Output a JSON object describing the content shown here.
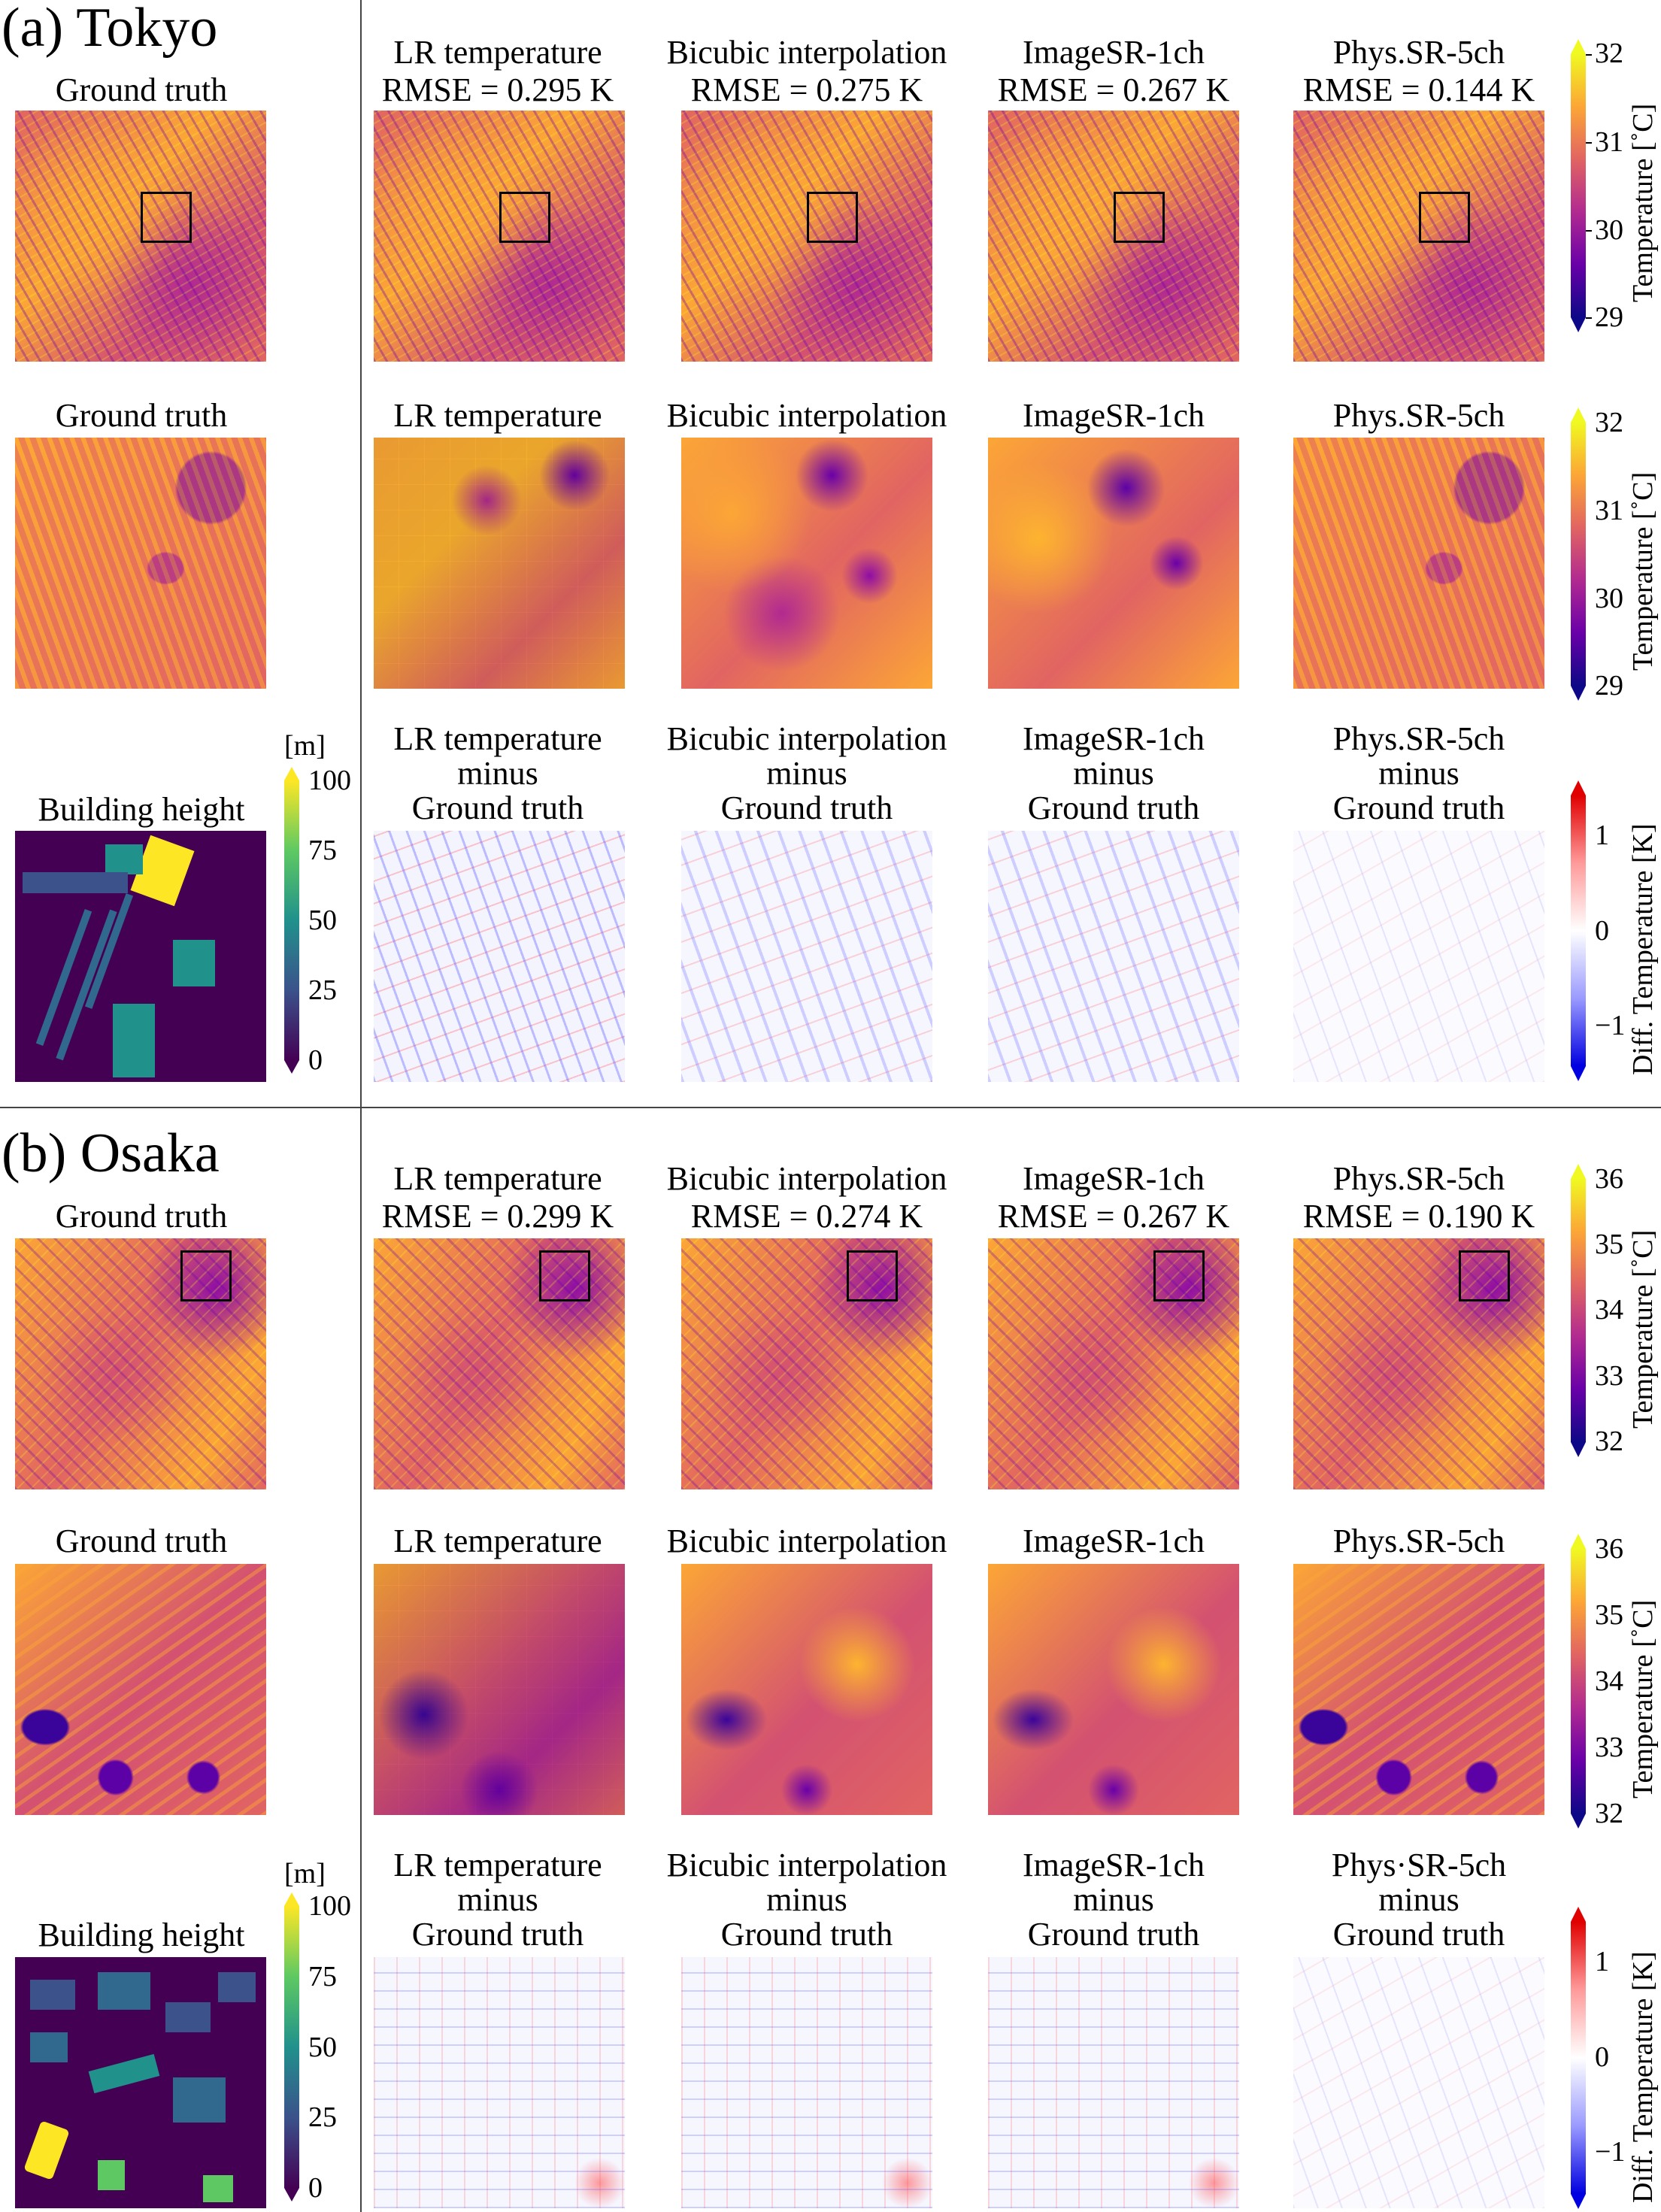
{
  "sections": [
    {
      "title": "(a) Tokyo",
      "row1": {
        "gt_title": "Ground truth",
        "titles": [
          {
            "line1": "LR temperature",
            "line2": "RMSE = 0.295 K"
          },
          {
            "line1": "Bicubic interpolation",
            "line2": "RMSE = 0.275 K"
          },
          {
            "line1": "ImageSR-1ch",
            "line2": "RMSE = 0.267 K"
          },
          {
            "line1": "Phys.SR-5ch",
            "line2": "RMSE = 0.144 K"
          }
        ]
      },
      "row2": {
        "gt_title": "Ground truth",
        "titles": [
          "LR temperature",
          "Bicubic interpolation",
          "ImageSR-1ch",
          "Phys.SR-5ch"
        ]
      },
      "row3": {
        "height_title": "Building height",
        "titles": [
          {
            "line1": "LR temperature",
            "line2": "minus",
            "line3": "Ground truth"
          },
          {
            "line1": "Bicubic interpolation",
            "line2": "minus",
            "line3": "Ground truth"
          },
          {
            "line1": "ImageSR-1ch",
            "line2": "minus",
            "line3": "Ground truth"
          },
          {
            "line1": "Phys.SR-5ch",
            "line2": "minus",
            "line3": "Ground truth"
          }
        ]
      },
      "temp_colorbar": {
        "label": "Temperature [˚C]",
        "ticks": [
          "32",
          "31",
          "30",
          "29"
        ]
      },
      "diff_colorbar": {
        "label": "Diff. Temperature [K]",
        "ticks": [
          "1",
          "0",
          "−1"
        ]
      },
      "height_colorbar": {
        "unit": "[m]",
        "ticks": [
          "100",
          "75",
          "50",
          "25",
          "0"
        ]
      }
    },
    {
      "title": "(b) Osaka",
      "row1": {
        "gt_title": "Ground truth",
        "titles": [
          {
            "line1": "LR temperature",
            "line2": "RMSE = 0.299 K"
          },
          {
            "line1": "Bicubic interpolation",
            "line2": "RMSE = 0.274 K"
          },
          {
            "line1": "ImageSR-1ch",
            "line2": "RMSE = 0.267 K"
          },
          {
            "line1": "Phys.SR-5ch",
            "line2": "RMSE = 0.190 K"
          }
        ]
      },
      "row2": {
        "gt_title": "Ground truth",
        "titles": [
          "LR temperature",
          "Bicubic interpolation",
          "ImageSR-1ch",
          "Phys.SR-5ch"
        ]
      },
      "row3": {
        "height_title": "Building height",
        "titles": [
          {
            "line1": "LR temperature",
            "line2": "minus",
            "line3": "Ground truth"
          },
          {
            "line1": "Bicubic interpolation",
            "line2": "minus",
            "line3": "Ground truth"
          },
          {
            "line1": "ImageSR-1ch",
            "line2": "minus",
            "line3": "Ground truth"
          },
          {
            "line1": "Phys·SR-5ch",
            "line2": "minus",
            "line3": "Ground truth"
          }
        ]
      },
      "temp_colorbar": {
        "label": "Temperature [˚C]",
        "ticks": [
          "36",
          "35",
          "34",
          "33",
          "32"
        ]
      },
      "diff_colorbar": {
        "label": "Diff. Temperature [K]",
        "ticks": [
          "1",
          "0",
          "−1"
        ]
      },
      "height_colorbar": {
        "unit": "[m]",
        "ticks": [
          "100",
          "75",
          "50",
          "25",
          "0"
        ]
      }
    }
  ],
  "colors": {
    "plasma": [
      "#0d0887",
      "#6a00a8",
      "#b12a90",
      "#e16462",
      "#fca636",
      "#f0f921"
    ],
    "viridis": [
      "#440154",
      "#3b528b",
      "#21918c",
      "#5ec962",
      "#fde725"
    ],
    "diff": [
      "#0000ff",
      "#ffffff",
      "#ff0000"
    ]
  }
}
